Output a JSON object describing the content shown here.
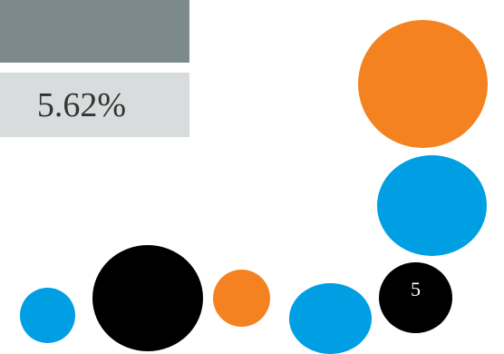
{
  "value_text": "5.62%",
  "page_number": "5",
  "colors": {
    "header_bar": "#7d8a8b",
    "value_bar": "#d8dcdc",
    "orange": "#f58220",
    "blue": "#009fe3",
    "black": "#000000"
  },
  "decor_circles": [
    {
      "name": "orange-circle-large",
      "color": "orange"
    },
    {
      "name": "blue-circle-large",
      "color": "blue"
    },
    {
      "name": "black-page-circle",
      "color": "black"
    },
    {
      "name": "blue-circle-bottom-right",
      "color": "blue"
    },
    {
      "name": "orange-circle-small",
      "color": "orange"
    },
    {
      "name": "black-circle-large",
      "color": "black"
    },
    {
      "name": "blue-circle-small",
      "color": "blue"
    }
  ]
}
